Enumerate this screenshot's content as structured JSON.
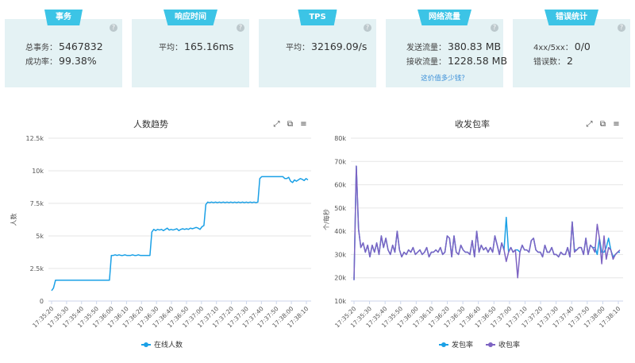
{
  "cards": [
    {
      "tag": "事务",
      "rows": [
        {
          "label": "总事务：",
          "value": "5467832"
        },
        {
          "label": "成功率：",
          "value": "99.38%"
        }
      ]
    },
    {
      "tag": "响应时间",
      "rows": [
        {
          "label": "平均：",
          "value": "165.16ms"
        }
      ]
    },
    {
      "tag": "TPS",
      "rows": [
        {
          "label": "平均：",
          "value": "32169.09/s"
        }
      ]
    },
    {
      "tag": "网络流量",
      "rows": [
        {
          "label": "发送流量：",
          "value": "380.83 MB"
        },
        {
          "label": "接收流量：",
          "value": "1228.58 MB"
        }
      ],
      "link": "这价值多少钱？"
    },
    {
      "tag": "错误统计",
      "rows": [
        {
          "label": "4xx/5xx：",
          "value": "0/0"
        },
        {
          "label": "错误数：",
          "value": "2"
        }
      ]
    }
  ],
  "icons": {
    "help": "question-icon",
    "toolbar": [
      "expand-icon",
      "copy-icon",
      "menu-icon"
    ]
  },
  "chart_data": [
    {
      "type": "line",
      "title": "人数趋势",
      "ylabel": "人数",
      "ylim": [
        0,
        12500
      ],
      "yticks": [
        "0",
        "2.5k",
        "5k",
        "7.5k",
        "10k",
        "12.5k"
      ],
      "xticks": [
        "17:35:20",
        "17:35:30",
        "17:35:40",
        "17:35:50",
        "17:36:00",
        "17:36:10",
        "17:36:20",
        "17:36:30",
        "17:36:40",
        "17:36:50",
        "17:37:00",
        "17:37:10",
        "17:37:20",
        "17:37:30",
        "17:37:40",
        "17:37:50",
        "17:38:00",
        "17:38:10"
      ],
      "grid": true,
      "legend_position": "bottom",
      "series": [
        {
          "name": "在线人数",
          "color": "#1aa0e6",
          "values": [
            800,
            1000,
            1600,
            1600,
            1600,
            1600,
            1600,
            1600,
            1600,
            1600,
            1600,
            1600,
            1600,
            1600,
            1600,
            1600,
            1600,
            1600,
            1600,
            1600,
            1600,
            1600,
            1600,
            1600,
            1600,
            1600,
            1600,
            1600,
            1600,
            1600,
            1600,
            3500,
            3500,
            3550,
            3500,
            3550,
            3500,
            3500,
            3550,
            3500,
            3500,
            3500,
            3550,
            3500,
            3500,
            3550,
            3500,
            3500,
            3500,
            3500,
            3500,
            3500,
            5300,
            5500,
            5400,
            5500,
            5450,
            5500,
            5400,
            5500,
            5600,
            5450,
            5500,
            5450,
            5500,
            5550,
            5400,
            5500,
            5550,
            5500,
            5550,
            5500,
            5600,
            5550,
            5600,
            5650,
            5600,
            5500,
            5700,
            5800,
            7400,
            7600,
            7550,
            7600,
            7550,
            7600,
            7550,
            7600,
            7550,
            7600,
            7550,
            7600,
            7550,
            7600,
            7550,
            7600,
            7550,
            7600,
            7550,
            7600,
            7550,
            7600,
            7550,
            7600,
            7550,
            7600,
            7550,
            7600,
            9400,
            9550,
            9550,
            9550,
            9550,
            9550,
            9550,
            9550,
            9550,
            9550,
            9550,
            9550,
            9550,
            9400,
            9400,
            9500,
            9200,
            9100,
            9300,
            9200,
            9300,
            9400,
            9350,
            9250,
            9400,
            9300
          ]
        }
      ]
    },
    {
      "type": "line",
      "title": "收发包率",
      "ylabel": "个/每秒",
      "ylim": [
        10000,
        80000
      ],
      "yticks": [
        "10k",
        "20k",
        "30k",
        "40k",
        "50k",
        "60k",
        "70k",
        "80k"
      ],
      "xticks": [
        "17:35:20",
        "17:35:30",
        "17:35:40",
        "17:35:50",
        "17:36:00",
        "17:36:10",
        "17:36:20",
        "17:36:30",
        "17:36:40",
        "17:36:50",
        "17:37:00",
        "17:37:10",
        "17:37:20",
        "17:37:30",
        "17:37:40",
        "17:37:50",
        "17:38:00",
        "17:38:10"
      ],
      "grid": true,
      "legend_position": "bottom",
      "series": [
        {
          "name": "发包率",
          "color": "#1aa0e6",
          "values": [
            19000,
            68000,
            41000,
            33000,
            35000,
            31000,
            34000,
            29000,
            34000,
            31000,
            35000,
            30000,
            38000,
            33000,
            37000,
            32000,
            30000,
            34000,
            31000,
            40000,
            32000,
            29000,
            31000,
            30000,
            32000,
            31000,
            33000,
            30000,
            31000,
            32000,
            30000,
            31000,
            33000,
            29000,
            31000,
            31000,
            32000,
            31000,
            33000,
            30000,
            31000,
            38000,
            37000,
            29000,
            38000,
            31000,
            30000,
            34000,
            32000,
            31000,
            31000,
            30000,
            36000,
            29000,
            40000,
            31000,
            34000,
            32000,
            33000,
            31000,
            33000,
            31000,
            38000,
            34000,
            30000,
            35000,
            32000,
            46000,
            31000,
            33000,
            31000,
            32000,
            32000,
            31000,
            34000,
            32000,
            32000,
            31000,
            36000,
            37000,
            32000,
            31000,
            31000,
            29000,
            34000,
            31000,
            31000,
            33000,
            30000,
            30000,
            29000,
            31000,
            30000,
            30000,
            33000,
            29000,
            44000,
            32000,
            32000,
            33000,
            33000,
            30000,
            37000,
            30000,
            34000,
            33000,
            33000,
            30000,
            37000,
            31000,
            31000,
            33000,
            37000,
            32000,
            29000,
            30000,
            31000,
            31000
          ]
        },
        {
          "name": "收包率",
          "color": "#7d63c2",
          "values": [
            19000,
            68000,
            41000,
            33000,
            35000,
            31000,
            34000,
            29000,
            34000,
            31000,
            35000,
            30000,
            38000,
            33000,
            37000,
            32000,
            30000,
            34000,
            31000,
            40000,
            32000,
            29000,
            31000,
            30000,
            32000,
            31000,
            33000,
            30000,
            31000,
            32000,
            30000,
            31000,
            33000,
            29000,
            31000,
            31000,
            32000,
            31000,
            33000,
            30000,
            31000,
            38000,
            37000,
            29000,
            38000,
            31000,
            30000,
            34000,
            32000,
            31000,
            31000,
            30000,
            36000,
            29000,
            40000,
            31000,
            34000,
            32000,
            33000,
            31000,
            33000,
            31000,
            38000,
            34000,
            30000,
            35000,
            32000,
            27000,
            31000,
            33000,
            31000,
            32000,
            20000,
            31000,
            34000,
            32000,
            32000,
            31000,
            36000,
            37000,
            32000,
            31000,
            31000,
            29000,
            34000,
            31000,
            31000,
            33000,
            30000,
            30000,
            29000,
            31000,
            30000,
            30000,
            33000,
            29000,
            44000,
            31000,
            32000,
            33000,
            33000,
            30000,
            37000,
            30000,
            34000,
            33000,
            31000,
            43000,
            37000,
            26000,
            38000,
            28000,
            33000,
            32000,
            28000,
            30000,
            31000,
            32000
          ]
        }
      ]
    }
  ]
}
